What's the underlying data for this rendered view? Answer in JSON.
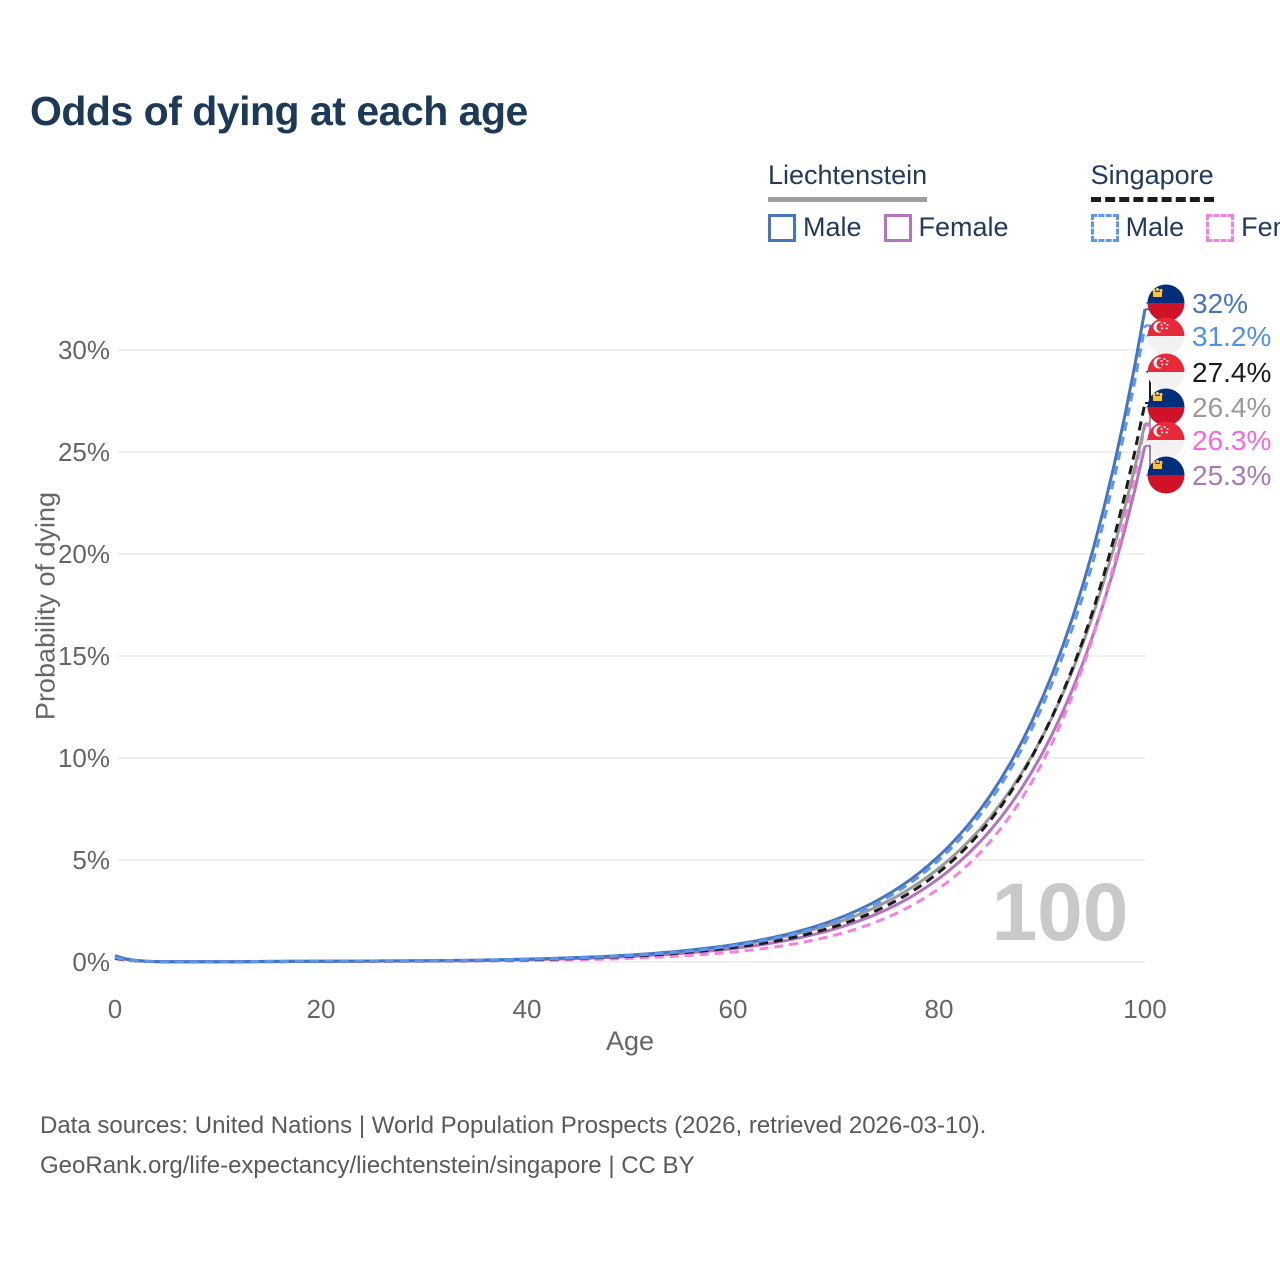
{
  "title": "Odds of dying at each age",
  "watermark": "100",
  "legend": {
    "groups": [
      {
        "country": "Liechtenstein",
        "line_style": "solid",
        "underline_color": "#9e9e9e",
        "items": [
          {
            "label": "Male",
            "color": "#4575bf"
          },
          {
            "label": "Female",
            "color": "#b273c0"
          }
        ]
      },
      {
        "country": "Singapore",
        "line_style": "dashed",
        "underline_color": "#1c1c1c",
        "items": [
          {
            "label": "Male",
            "color": "#5c97f2"
          },
          {
            "label": "Female",
            "color": "#f97ee0"
          }
        ]
      }
    ]
  },
  "axes": {
    "x": {
      "title": "Age",
      "tick_labels": [
        "0",
        "20",
        "40",
        "60",
        "80",
        "100"
      ],
      "tick_values": [
        0,
        20,
        40,
        60,
        80,
        100
      ],
      "range": [
        0,
        100
      ]
    },
    "y": {
      "title": "Probability of dying",
      "tick_labels": [
        "0%",
        "5%",
        "10%",
        "15%",
        "20%",
        "25%",
        "30%"
      ],
      "tick_values": [
        0,
        5,
        10,
        15,
        20,
        25,
        30
      ],
      "range": [
        0,
        32.5
      ]
    }
  },
  "end_labels": [
    {
      "text": "32%",
      "value": 32.0,
      "flag": "li",
      "color": "#4575bf",
      "series": "Liechtenstein Male"
    },
    {
      "text": "31.2%",
      "value": 31.2,
      "flag": "sg",
      "color": "#4f90f0",
      "series": "Singapore Male"
    },
    {
      "text": "27.4%",
      "value": 27.4,
      "flag": "sg",
      "color": "#1c1c1c",
      "series": "Singapore"
    },
    {
      "text": "26.4%",
      "value": 26.4,
      "flag": "li",
      "color": "#9a9a9a",
      "series": "Liechtenstein"
    },
    {
      "text": "26.3%",
      "value": 26.3,
      "flag": "sg",
      "color": "#f767e0",
      "series": "Singapore Female"
    },
    {
      "text": "25.3%",
      "value": 25.3,
      "flag": "li",
      "color": "#ac77bb",
      "series": "Liechtenstein Female"
    }
  ],
  "flag_colors": {
    "li_blue": "#002d7c",
    "li_red": "#d01228",
    "li_gold": "#f5c542",
    "sg_red": "#e8293a",
    "sg_white": "#f2f2f2"
  },
  "footer": {
    "line1": "Data sources: United Nations | World Population Prospects (2026, retrieved 2026-03-10).",
    "line2": "GeoRank.org/life-expectancy/liechtenstein/singapore | CC BY"
  },
  "chart_data": {
    "type": "line",
    "title": "Odds of dying at each age",
    "xlabel": "Age",
    "ylabel": "Probability of dying",
    "xlim": [
      0,
      100
    ],
    "ylim": [
      0,
      32.5
    ],
    "grid": "horizontal",
    "legend_position": "top-right",
    "x": [
      0,
      5,
      10,
      15,
      20,
      25,
      30,
      35,
      40,
      45,
      50,
      55,
      60,
      65,
      70,
      75,
      80,
      85,
      90,
      95,
      100
    ],
    "unit": "percent",
    "series": [
      {
        "name": "Liechtenstein Female",
        "country": "Liechtenstein",
        "sex": "female",
        "style": "solid",
        "color": "#b273c0",
        "values": [
          0.25,
          0.01,
          0.01,
          0.02,
          0.03,
          0.04,
          0.05,
          0.07,
          0.11,
          0.17,
          0.27,
          0.42,
          0.66,
          1.04,
          1.64,
          2.59,
          4.1,
          6.46,
          10.2,
          16.1,
          25.3
        ]
      },
      {
        "name": "Singapore Female",
        "country": "Singapore",
        "sex": "female",
        "style": "dashed",
        "color": "#f97ee0",
        "values": [
          0.16,
          0.01,
          0.01,
          0.02,
          0.02,
          0.03,
          0.04,
          0.05,
          0.07,
          0.11,
          0.18,
          0.3,
          0.49,
          0.81,
          1.33,
          2.19,
          3.6,
          5.92,
          9.73,
          16.0,
          26.3
        ]
      },
      {
        "name": "Liechtenstein",
        "country": "Liechtenstein",
        "sex": "all",
        "style": "solid",
        "color": "#9a9a9a",
        "values": [
          0.28,
          0.01,
          0.01,
          0.03,
          0.04,
          0.05,
          0.06,
          0.08,
          0.14,
          0.22,
          0.34,
          0.52,
          0.8,
          1.24,
          1.92,
          2.97,
          4.6,
          7.12,
          11.0,
          17.1,
          26.4
        ]
      },
      {
        "name": "Singapore",
        "country": "Singapore",
        "sex": "all",
        "style": "dashed",
        "color": "#1c1c1c",
        "values": [
          0.18,
          0.01,
          0.01,
          0.02,
          0.03,
          0.04,
          0.05,
          0.07,
          0.11,
          0.18,
          0.28,
          0.45,
          0.71,
          1.11,
          1.76,
          2.78,
          4.4,
          6.95,
          11.0,
          17.3,
          27.4
        ]
      },
      {
        "name": "Liechtenstein Male",
        "country": "Liechtenstein",
        "sex": "male",
        "style": "solid",
        "color": "#4575bf",
        "values": [
          0.31,
          0.01,
          0.01,
          0.03,
          0.04,
          0.05,
          0.06,
          0.09,
          0.14,
          0.22,
          0.34,
          0.54,
          0.85,
          1.33,
          2.09,
          3.3,
          5.2,
          8.18,
          12.9,
          20.3,
          32.0
        ]
      },
      {
        "name": "Singapore Male",
        "country": "Singapore",
        "sex": "male",
        "style": "dashed",
        "color": "#5c97f2",
        "values": [
          0.21,
          0.01,
          0.01,
          0.03,
          0.04,
          0.05,
          0.06,
          0.08,
          0.13,
          0.2,
          0.32,
          0.5,
          0.8,
          1.27,
          2.0,
          3.16,
          5.0,
          7.91,
          12.5,
          19.7,
          31.2
        ]
      }
    ]
  }
}
